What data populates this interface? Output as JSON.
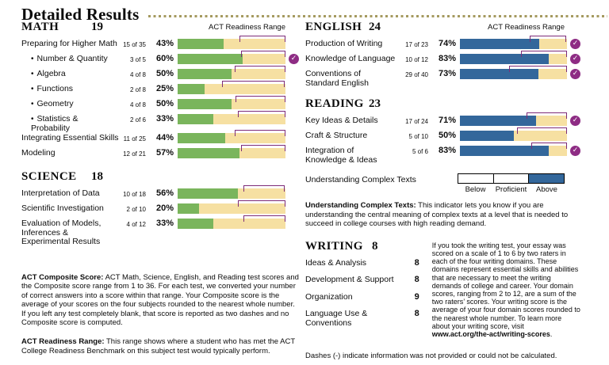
{
  "header": {
    "title": "Detailed Results"
  },
  "labels": {
    "readiness_range": "ACT Readiness Range"
  },
  "colors": {
    "green": "#7ab55c",
    "blue": "#33679b",
    "tan": "#f6e0a2",
    "bracket_purple": "#7d2b78",
    "check_purple": "#8e2c84",
    "dash_gold": "#a59a5f"
  },
  "sections": {
    "math": {
      "name": "MATH",
      "score": "19",
      "bar_color": "green",
      "rows": [
        {
          "label": "Preparing for Higher Math",
          "sub": false,
          "fraction": "15 of 35",
          "pct": "43%",
          "value": 43,
          "range": [
            57,
            100
          ],
          "check": false
        },
        {
          "label": "Number & Quantity",
          "sub": true,
          "fraction": "3 of 5",
          "pct": "60%",
          "value": 60,
          "range": [
            59,
            100
          ],
          "check": true
        },
        {
          "label": "Algebra",
          "sub": true,
          "fraction": "4 of 8",
          "pct": "50%",
          "value": 50,
          "range": [
            53,
            100
          ],
          "check": false
        },
        {
          "label": "Functions",
          "sub": true,
          "fraction": "2 of 8",
          "pct": "25%",
          "value": 25,
          "range": [
            41,
            99
          ],
          "check": false
        },
        {
          "label": "Geometry",
          "sub": true,
          "fraction": "4 of 8",
          "pct": "50%",
          "value": 50,
          "range": [
            54,
            100
          ],
          "check": false
        },
        {
          "label": "Statistics & Probability",
          "sub": true,
          "fraction": "2 of 6",
          "pct": "33%",
          "value": 33,
          "range": [
            56,
            100
          ],
          "check": false
        },
        {
          "label": "Integrating Essential Skills",
          "sub": false,
          "fraction": "11 of 25",
          "pct": "44%",
          "value": 44,
          "range": [
            53,
            100
          ],
          "check": false
        },
        {
          "label": "Modeling",
          "sub": false,
          "fraction": "12 of 21",
          "pct": "57%",
          "value": 57,
          "range": [
            59,
            100
          ],
          "check": false
        }
      ]
    },
    "science": {
      "name": "SCIENCE",
      "score": "18",
      "bar_color": "green",
      "rows": [
        {
          "label": "Interpretation of Data",
          "sub": false,
          "fraction": "10 of 18",
          "pct": "56%",
          "value": 56,
          "range": [
            61,
            99
          ],
          "check": false
        },
        {
          "label": "Scientific Investigation",
          "sub": false,
          "fraction": "2 of 10",
          "pct": "20%",
          "value": 20,
          "range": [
            56,
            100
          ],
          "check": false
        },
        {
          "label": "Evaluation of Models, Inferences & Experimental Results",
          "sub": false,
          "fraction": "4 of 12",
          "pct": "33%",
          "value": 33,
          "range": [
            61,
            100
          ],
          "check": false
        }
      ]
    },
    "english": {
      "name": "ENGLISH",
      "score": "24",
      "bar_color": "blue",
      "rows": [
        {
          "label": "Production of Writing",
          "sub": false,
          "fraction": "17 of 23",
          "pct": "74%",
          "value": 74,
          "range": [
            65,
            99
          ],
          "check": true
        },
        {
          "label": "Knowledge of Language",
          "sub": false,
          "fraction": "10 of 12",
          "pct": "83%",
          "value": 83,
          "range": [
            57,
            100
          ],
          "check": true
        },
        {
          "label": "Conventions of Standard English",
          "sub": false,
          "fraction": "29 of 40",
          "pct": "73%",
          "value": 73,
          "range": [
            46,
            100
          ],
          "check": true
        }
      ]
    },
    "reading": {
      "name": "READING",
      "score": "23",
      "bar_color": "blue",
      "rows": [
        {
          "label": "Key Ideas & Details",
          "sub": false,
          "fraction": "17 of 24",
          "pct": "71%",
          "value": 71,
          "range": [
            62,
            100
          ],
          "check": true
        },
        {
          "label": "Craft & Structure",
          "sub": false,
          "fraction": "5 of 10",
          "pct": "50%",
          "value": 50,
          "range": [
            53,
            100
          ],
          "check": false
        },
        {
          "label": "Integration of Knowledge & Ideas",
          "sub": false,
          "fraction": "5 of 6",
          "pct": "83%",
          "value": 83,
          "range": [
            67,
            100
          ],
          "check": true
        }
      ]
    }
  },
  "uct": {
    "label": "Understanding Complex Texts",
    "levels": [
      "Below",
      "Proficient",
      "Above"
    ],
    "current": "Above"
  },
  "writing": {
    "name": "WRITING",
    "score": "8",
    "domains": [
      {
        "label": "Ideas & Analysis",
        "score": "8"
      },
      {
        "label": "Development & Support",
        "score": "8"
      },
      {
        "label": "Organization",
        "score": "9"
      },
      {
        "label": "Language Use & Conventions",
        "score": "8"
      }
    ]
  },
  "notes": {
    "composite": {
      "lead": "ACT Composite Score:",
      "body": " ACT Math, Science, English, and Reading test scores and the Composite score range from 1 to 36. For each test, we converted your number of correct answers into a score within that range. Your Composite score is the average of your scores on the four subjects rounded to the nearest whole number. If you left any test completely blank, that score is reported as two dashes and no Composite score is computed."
    },
    "readiness": {
      "lead": "ACT Readiness Range:",
      "body": " This range shows where a student who has met the ACT College Readiness Benchmark on this subject test would typically perform."
    },
    "uct": {
      "lead": "Understanding Complex Texts:",
      "body": " This indicator lets you know if you are understanding the central meaning of complex texts at a level that is needed to succeed in college courses with high reading demand."
    },
    "writing": {
      "body": "If you took the writing test, your essay was scored on a scale of 1 to 6 by two raters in each of the four writing domains. These domains represent essential skills and abilities that are necessary to meet the writing demands of college and career. Your domain scores, ranging from 2 to 12, are a sum of the two raters’ scores. Your writing score is the average of your four domain scores rounded to the nearest whole number. To learn more about your writing score, visit ",
      "url": "www.act.org/the-act/writing-scores",
      "tail": "."
    },
    "dashes": "Dashes (-) indicate information was not provided or could not be calculated."
  }
}
